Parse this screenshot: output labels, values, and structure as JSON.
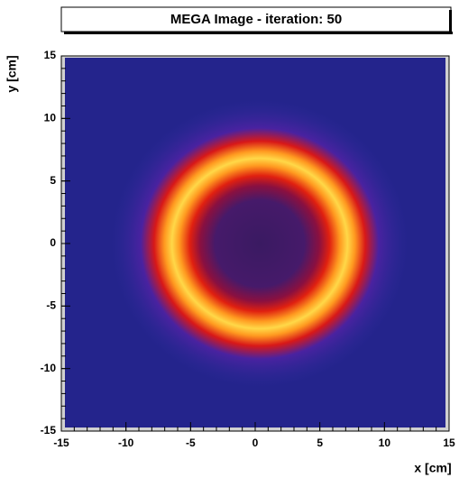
{
  "chart_data": {
    "type": "heatmap",
    "title": "MEGA Image - iteration: 50",
    "xlabel": "x [cm]",
    "ylabel": "y [cm]",
    "xlim": [
      -15,
      15
    ],
    "ylim": [
      -15,
      15
    ],
    "xticks": [
      -15,
      -10,
      -5,
      0,
      5,
      10,
      15
    ],
    "yticks": [
      -15,
      -10,
      -5,
      0,
      5,
      10,
      15
    ]
  }
}
